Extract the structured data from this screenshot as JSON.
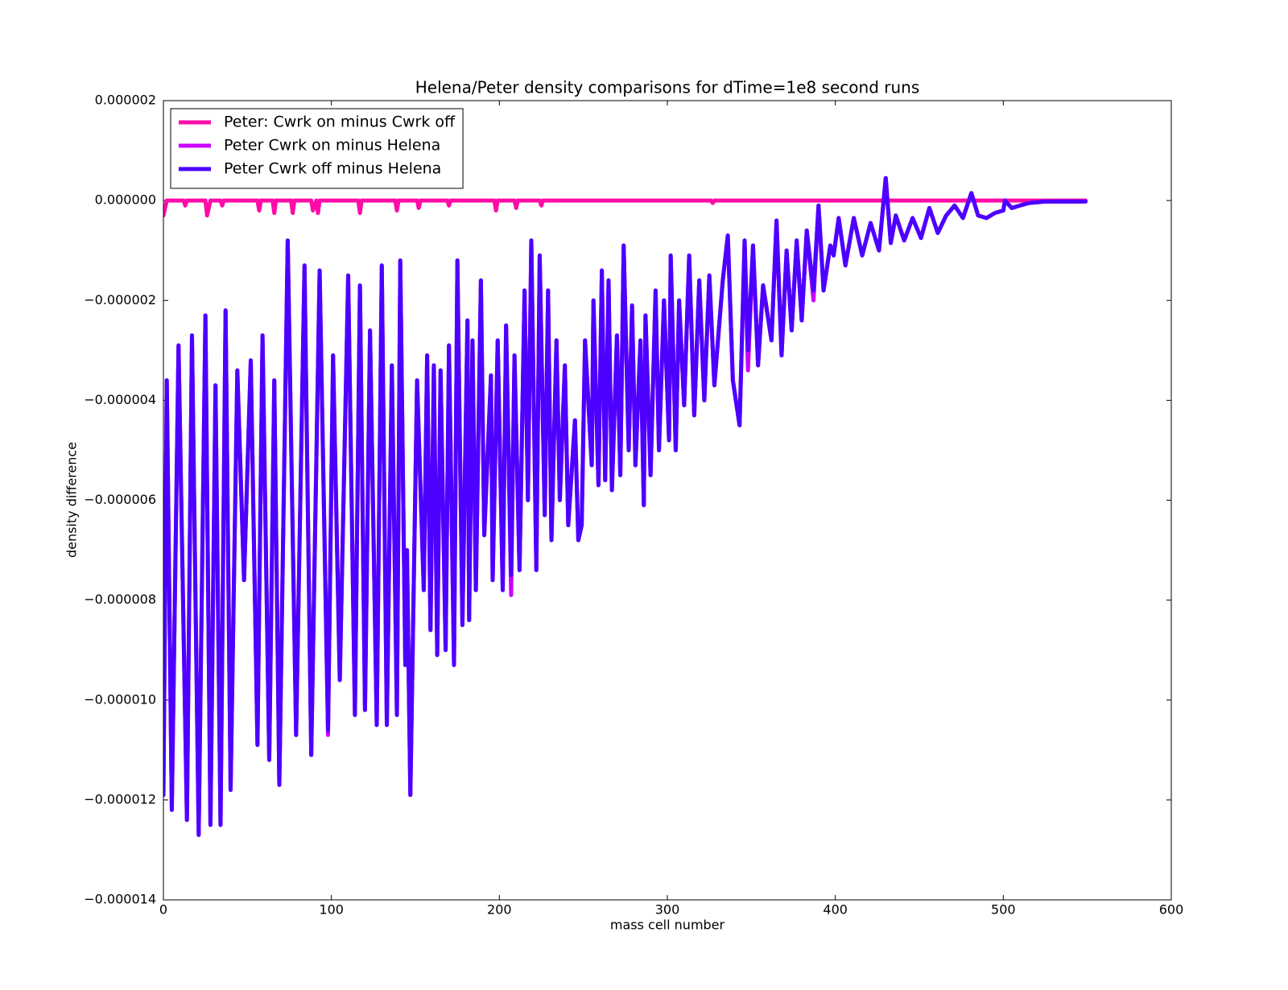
{
  "chart_data": {
    "type": "line",
    "title": "Helena/Peter density comparisons for dTime=1e8 second runs",
    "xlabel": "mass cell number",
    "ylabel": "density difference",
    "xlim": [
      0,
      600
    ],
    "ylim": [
      -1.4e-05,
      2e-06
    ],
    "xticks": [
      0,
      100,
      200,
      300,
      400,
      500,
      600
    ],
    "yticks": [
      {
        "value": 2e-06,
        "label": "0.000002"
      },
      {
        "value": 0,
        "label": "0.000000"
      },
      {
        "value": -2e-06,
        "label": "−0.000002"
      },
      {
        "value": -4e-06,
        "label": "−0.000004"
      },
      {
        "value": -6e-06,
        "label": "−0.000006"
      },
      {
        "value": -8e-06,
        "label": "−0.000008"
      },
      {
        "value": -1e-05,
        "label": "−0.000010"
      },
      {
        "value": -1.2e-05,
        "label": "−0.000012"
      },
      {
        "value": -1.4e-05,
        "label": "−0.000014"
      }
    ],
    "legend": "upper left",
    "series": [
      {
        "name": "Peter: Cwrk on minus Cwrk off",
        "color": "#ff0ca8",
        "x": [
          0,
          2,
          12,
          13,
          14,
          25,
          26,
          28,
          34,
          35,
          36,
          56,
          57,
          58,
          65,
          66,
          67,
          76,
          77,
          78,
          88,
          89,
          91,
          92,
          93,
          116,
          117,
          118,
          138,
          139,
          140,
          151,
          152,
          153,
          169,
          170,
          171,
          197,
          198,
          199,
          209,
          210,
          211,
          224,
          225,
          226,
          326,
          327,
          328,
          549
        ],
        "values": [
          -3e-07,
          0,
          0,
          -1e-07,
          0,
          0,
          -3e-07,
          0,
          0,
          -1e-07,
          0,
          0,
          -2e-07,
          0,
          0,
          -2.5e-07,
          0,
          0,
          -2.5e-07,
          0,
          0,
          -2e-07,
          0,
          -2.5e-07,
          0,
          0,
          -2.5e-07,
          0,
          0,
          -2e-07,
          0,
          0,
          -1.5e-07,
          0,
          0,
          -1e-07,
          0,
          0,
          -2e-07,
          0,
          0,
          -1.5e-07,
          0,
          0,
          -1e-07,
          0,
          0,
          -5e-08,
          0,
          0
        ]
      },
      {
        "name": "Peter Cwrk on minus Helena",
        "color": "#cc00ff",
        "x": [
          0,
          2,
          5,
          9,
          14,
          17,
          21,
          25,
          28,
          31,
          34,
          37,
          40,
          44,
          48,
          52,
          56,
          59,
          63,
          66,
          69,
          74,
          79,
          84,
          88,
          93,
          98,
          101,
          105,
          110,
          114,
          117,
          120,
          123,
          127,
          130,
          133,
          136,
          139,
          141,
          144,
          145,
          147,
          151,
          155,
          157,
          159,
          161,
          163,
          165,
          168,
          170,
          173,
          175,
          178,
          181,
          182,
          184,
          186,
          189,
          191,
          195,
          196,
          199,
          202,
          204,
          207,
          209,
          212,
          215,
          217,
          219,
          222,
          224,
          227,
          229,
          231,
          234,
          236,
          239,
          241,
          245,
          247,
          249,
          251,
          255,
          256,
          259,
          261,
          263,
          265,
          267,
          270,
          272,
          274,
          277,
          279,
          281,
          284,
          286,
          287,
          290,
          293,
          295,
          298,
          301,
          302,
          305,
          307,
          310,
          313,
          316,
          319,
          322,
          325,
          328,
          333,
          336,
          339,
          343,
          346,
          348,
          351,
          354,
          357,
          362,
          365,
          368,
          371,
          374,
          377,
          380,
          383,
          387,
          390,
          393,
          397,
          399,
          402,
          406,
          411,
          416,
          421,
          426,
          430,
          433,
          436,
          441,
          446,
          451,
          456,
          461,
          466,
          471,
          476,
          481,
          485,
          490,
          495,
          500,
          501,
          505,
          515,
          525,
          535,
          549
        ],
        "values": [
          -1.19e-05,
          -3.6e-06,
          -1.22e-05,
          -2.9e-06,
          -1.24e-05,
          -2.7e-06,
          -1.27e-05,
          -2.3e-06,
          -1.25e-05,
          -3.7e-06,
          -1.25e-05,
          -2.2e-06,
          -1.18e-05,
          -3.4e-06,
          -7.6e-06,
          -3.2e-06,
          -1.09e-05,
          -2.7e-06,
          -1.12e-05,
          -3.6e-06,
          -1.17e-05,
          -8e-07,
          -1.07e-05,
          -1.3e-06,
          -1.11e-05,
          -1.4e-06,
          -1.07e-05,
          -3.1e-06,
          -9.6e-06,
          -1.5e-06,
          -1.03e-05,
          -1.7e-06,
          -1.02e-05,
          -2.6e-06,
          -1.05e-05,
          -1.3e-06,
          -1.05e-05,
          -3.3e-06,
          -1.03e-05,
          -1.2e-06,
          -9.3e-06,
          -7e-06,
          -1.19e-05,
          -3.6e-06,
          -7.8e-06,
          -3.1e-06,
          -8.6e-06,
          -3.3e-06,
          -9.1e-06,
          -3.4e-06,
          -9e-06,
          -2.9e-06,
          -9.3e-06,
          -1.2e-06,
          -8.5e-06,
          -2.4e-06,
          -8.4e-06,
          -2.8e-06,
          -7.8e-06,
          -1.6e-06,
          -6.7e-06,
          -3.5e-06,
          -7.6e-06,
          -2.8e-06,
          -7.8e-06,
          -2.5e-06,
          -7.9e-06,
          -3.1e-06,
          -7.4e-06,
          -1.8e-06,
          -6e-06,
          -8e-07,
          -7.4e-06,
          -1.1e-06,
          -6.3e-06,
          -1.8e-06,
          -6.8e-06,
          -2.8e-06,
          -6e-06,
          -3.3e-06,
          -6.5e-06,
          -4.4e-06,
          -6.8e-06,
          -6.5e-06,
          -2.8e-06,
          -5.3e-06,
          -2e-06,
          -5.7e-06,
          -1.4e-06,
          -5.6e-06,
          -1.6e-06,
          -5.8e-06,
          -2.7e-06,
          -5.5e-06,
          -9e-07,
          -5e-06,
          -2.1e-06,
          -5.3e-06,
          -2.8e-06,
          -6.1e-06,
          -2.3e-06,
          -5.5e-06,
          -1.8e-06,
          -5e-06,
          -2e-06,
          -4.8e-06,
          -1.1e-06,
          -5e-06,
          -2e-06,
          -4.1e-06,
          -1.1e-06,
          -4.3e-06,
          -1.6e-06,
          -4e-06,
          -1.5e-06,
          -3.7e-06,
          -1.6e-06,
          -7e-07,
          -3.6e-06,
          -4.5e-06,
          -8e-07,
          -3.4e-06,
          -9e-07,
          -3.3e-06,
          -1.7e-06,
          -2.8e-06,
          -4e-07,
          -3.1e-06,
          -1e-06,
          -2.6e-06,
          -8e-07,
          -2.4e-06,
          -6e-07,
          -2e-06,
          -1e-07,
          -1.8e-06,
          -9e-07,
          -1.1e-06,
          -3.5e-07,
          -1.3e-06,
          -3.5e-07,
          -1.1e-06,
          -4.5e-07,
          -1e-06,
          4.5e-07,
          -8.5e-07,
          -3e-07,
          -8e-07,
          -3.5e-07,
          -7.5e-07,
          -1.5e-07,
          -6.5e-07,
          -3e-07,
          -1e-07,
          -3.5e-07,
          1.5e-07,
          -3e-07,
          -3.5e-07,
          -2.5e-07,
          -2e-07,
          0,
          -1.5e-07,
          -5e-08,
          -2e-08,
          -2e-08,
          -2e-08
        ]
      },
      {
        "name": "Peter Cwrk off minus Helena",
        "color": "#4c00ff",
        "x": [
          0,
          2,
          5,
          9,
          14,
          17,
          21,
          25,
          28,
          31,
          34,
          37,
          40,
          44,
          48,
          52,
          56,
          59,
          63,
          66,
          69,
          74,
          79,
          84,
          88,
          93,
          98,
          101,
          105,
          110,
          114,
          117,
          120,
          123,
          127,
          130,
          133,
          136,
          139,
          141,
          144,
          145,
          147,
          151,
          155,
          157,
          159,
          161,
          163,
          165,
          168,
          170,
          173,
          175,
          178,
          181,
          182,
          184,
          186,
          189,
          191,
          195,
          196,
          199,
          202,
          204,
          207,
          209,
          212,
          215,
          217,
          219,
          222,
          224,
          227,
          229,
          231,
          234,
          236,
          239,
          241,
          245,
          247,
          249,
          251,
          255,
          256,
          259,
          261,
          263,
          265,
          267,
          270,
          272,
          274,
          277,
          279,
          281,
          284,
          286,
          287,
          290,
          293,
          295,
          298,
          301,
          302,
          305,
          307,
          310,
          313,
          316,
          319,
          322,
          325,
          328,
          333,
          336,
          339,
          343,
          346,
          348,
          351,
          354,
          357,
          362,
          365,
          368,
          371,
          374,
          377,
          380,
          383,
          387,
          390,
          393,
          397,
          399,
          402,
          406,
          411,
          416,
          421,
          426,
          430,
          433,
          436,
          441,
          446,
          451,
          456,
          461,
          466,
          471,
          476,
          481,
          485,
          490,
          495,
          500,
          501,
          505,
          515,
          525,
          535,
          549
        ],
        "values": [
          -1.19e-05,
          -3.6e-06,
          -1.22e-05,
          -2.9e-06,
          -1.24e-05,
          -2.7e-06,
          -1.27e-05,
          -2.3e-06,
          -1.25e-05,
          -3.7e-06,
          -1.25e-05,
          -2.2e-06,
          -1.18e-05,
          -3.4e-06,
          -7.6e-06,
          -3.2e-06,
          -1.09e-05,
          -2.7e-06,
          -1.12e-05,
          -3.6e-06,
          -1.17e-05,
          -8e-07,
          -1.07e-05,
          -1.3e-06,
          -1.11e-05,
          -1.4e-06,
          -1.06e-05,
          -3.1e-06,
          -9.6e-06,
          -1.5e-06,
          -1.03e-05,
          -1.7e-06,
          -1.02e-05,
          -2.6e-06,
          -1.05e-05,
          -1.3e-06,
          -1.05e-05,
          -3.3e-06,
          -1.03e-05,
          -1.2e-06,
          -9.3e-06,
          -7e-06,
          -1.19e-05,
          -3.6e-06,
          -7.8e-06,
          -3.1e-06,
          -8.6e-06,
          -3.3e-06,
          -9.1e-06,
          -3.4e-06,
          -9e-06,
          -2.9e-06,
          -9.3e-06,
          -1.2e-06,
          -8.5e-06,
          -2.4e-06,
          -8.4e-06,
          -2.8e-06,
          -7.8e-06,
          -1.6e-06,
          -6.7e-06,
          -3.5e-06,
          -7.6e-06,
          -2.8e-06,
          -7.8e-06,
          -2.5e-06,
          -7.5e-06,
          -3.1e-06,
          -7.4e-06,
          -1.8e-06,
          -6e-06,
          -8e-07,
          -7.4e-06,
          -1.1e-06,
          -6.3e-06,
          -1.8e-06,
          -6.8e-06,
          -2.8e-06,
          -6e-06,
          -3.3e-06,
          -6.5e-06,
          -4.4e-06,
          -6.8e-06,
          -6.5e-06,
          -2.8e-06,
          -5.3e-06,
          -2e-06,
          -5.7e-06,
          -1.4e-06,
          -5.6e-06,
          -1.6e-06,
          -5.8e-06,
          -2.7e-06,
          -5.5e-06,
          -9e-07,
          -5e-06,
          -2.1e-06,
          -5.3e-06,
          -2.8e-06,
          -6.1e-06,
          -2.3e-06,
          -5.5e-06,
          -1.8e-06,
          -5e-06,
          -2e-06,
          -4.8e-06,
          -1.1e-06,
          -5e-06,
          -2e-06,
          -4.1e-06,
          -1.1e-06,
          -4.3e-06,
          -1.6e-06,
          -4e-06,
          -1.5e-06,
          -3.7e-06,
          -1.6e-06,
          -7e-07,
          -3.6e-06,
          -4.5e-06,
          -8e-07,
          -3e-06,
          -9e-07,
          -3.3e-06,
          -1.7e-06,
          -2.8e-06,
          -4e-07,
          -3.1e-06,
          -1e-06,
          -2.6e-06,
          -8e-07,
          -2.4e-06,
          -6e-07,
          -1.8e-06,
          -1e-07,
          -1.8e-06,
          -9e-07,
          -1.1e-06,
          -3.5e-07,
          -1.3e-06,
          -3.5e-07,
          -1.1e-06,
          -4.5e-07,
          -1e-06,
          4.5e-07,
          -8.5e-07,
          -3e-07,
          -8e-07,
          -3.5e-07,
          -7.5e-07,
          -1.5e-07,
          -6.5e-07,
          -3e-07,
          -1e-07,
          -3.5e-07,
          1.5e-07,
          -3e-07,
          -3.5e-07,
          -2.5e-07,
          -2e-07,
          0,
          -1.5e-07,
          -5e-08,
          -2e-08,
          -2e-08,
          -2e-08
        ]
      }
    ]
  }
}
